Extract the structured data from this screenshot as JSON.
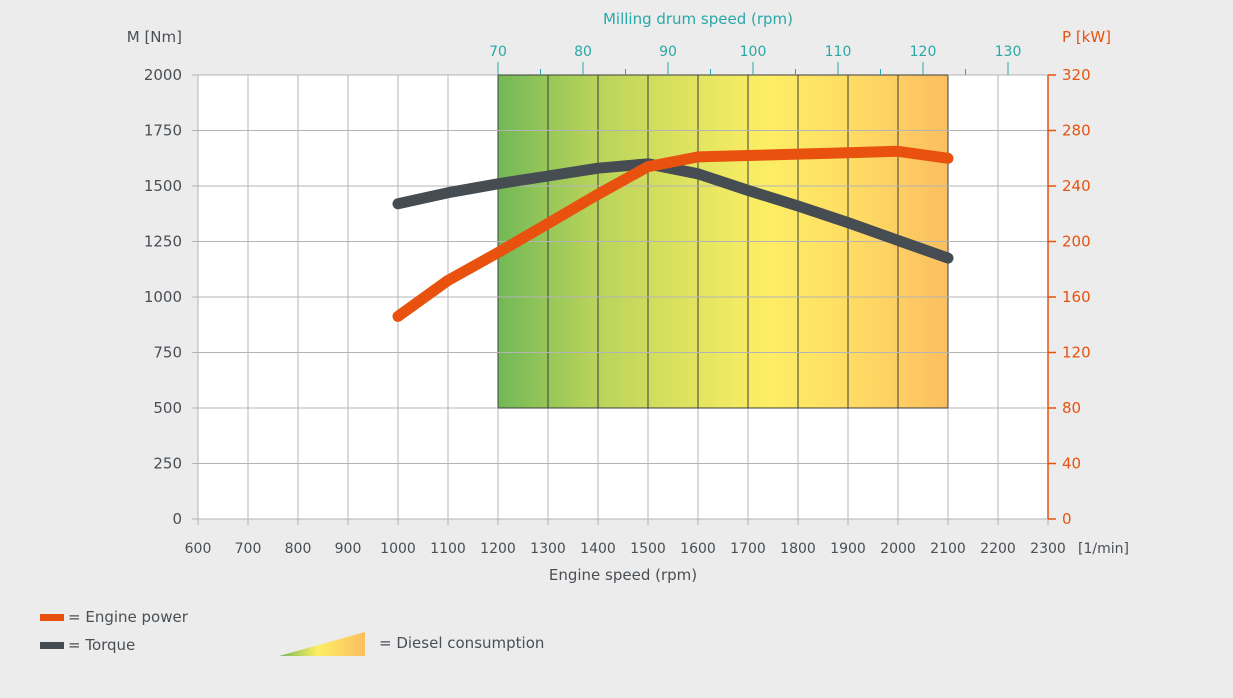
{
  "chart_data": {
    "type": "line",
    "title": "",
    "xlabel": "Engine speed (rpm)",
    "x_unit": "[1/min]",
    "xlim": [
      600,
      2300
    ],
    "x_ticks": [
      600,
      700,
      800,
      900,
      1000,
      1100,
      1200,
      1300,
      1400,
      1500,
      1600,
      1700,
      1800,
      1900,
      2000,
      2100,
      2200,
      2300
    ],
    "ylabel_left": "M [Nm]",
    "ylim_left": [
      0,
      2000
    ],
    "y_ticks_left": [
      0,
      250,
      500,
      750,
      1000,
      1250,
      1500,
      1750,
      2000
    ],
    "ylabel_right": "P [kW]",
    "ylim_right": [
      0,
      320
    ],
    "y_ticks_right": [
      0,
      40,
      80,
      120,
      160,
      200,
      240,
      280,
      320
    ],
    "xlabel_top": "Milling drum speed (rpm)",
    "top_ticks": [
      {
        "label": "70",
        "engine_rpm": 1200
      },
      {
        "label": "80",
        "engine_rpm": 1370
      },
      {
        "label": "90",
        "engine_rpm": 1540
      },
      {
        "label": "100",
        "engine_rpm": 1710
      },
      {
        "label": "110",
        "engine_rpm": 1880
      },
      {
        "label": "120",
        "engine_rpm": 2050
      },
      {
        "label": "130",
        "engine_rpm": 2220
      }
    ],
    "grid": true,
    "consumption_band": {
      "x_from": 1200,
      "x_to": 2100,
      "torque_from": 500,
      "torque_to": 2000
    },
    "series": [
      {
        "name": "Engine power",
        "axis": "right",
        "color": "#e8520e",
        "x": [
          1000,
          1100,
          1200,
          1300,
          1400,
          1500,
          1600,
          1700,
          1800,
          1900,
          2000,
          2100
        ],
        "values": [
          146,
          172,
          192,
          213,
          234,
          254,
          261,
          262,
          263,
          264,
          265,
          260
        ]
      },
      {
        "name": "Torque",
        "axis": "left",
        "color": "#454c52",
        "x": [
          1000,
          1100,
          1200,
          1300,
          1400,
          1500,
          1600,
          1700,
          1800,
          1900,
          2000,
          2100
        ],
        "values": [
          1420,
          1470,
          1510,
          1545,
          1580,
          1600,
          1555,
          1480,
          1410,
          1335,
          1255,
          1175
        ]
      }
    ]
  },
  "legend": {
    "power": "= Engine power",
    "torque": "= Torque",
    "diesel": "= Diesel consumption"
  },
  "colors": {
    "power": "#e8520e",
    "torque": "#454c52",
    "top_axis": "#2aa8a8",
    "grid": "#b4b4b4"
  }
}
